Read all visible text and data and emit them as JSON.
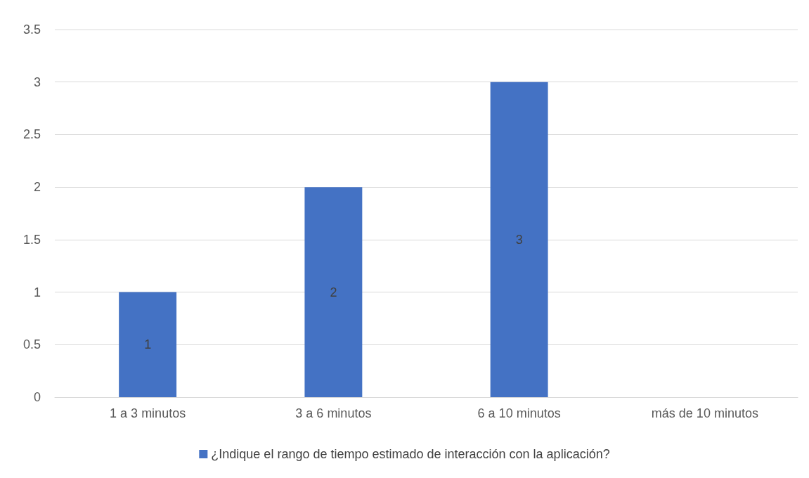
{
  "chart_data": {
    "type": "bar",
    "categories": [
      "1 a 3 minutos",
      "3 a 6 minutos",
      "6 a 10 minutos",
      "más de 10 minutos"
    ],
    "series": [
      {
        "name": "¿Indique el rango de tiempo estimado de interacción con la aplicación?",
        "color": "#4472c4",
        "values": [
          1,
          2,
          3,
          0
        ],
        "value_labels": [
          "1",
          "2",
          "3",
          null
        ]
      }
    ],
    "ylim": [
      0,
      3.5
    ],
    "yticks": [
      0,
      0.5,
      1,
      1.5,
      2,
      2.5,
      3,
      3.5
    ],
    "grid": "y",
    "legend": "bottom"
  }
}
